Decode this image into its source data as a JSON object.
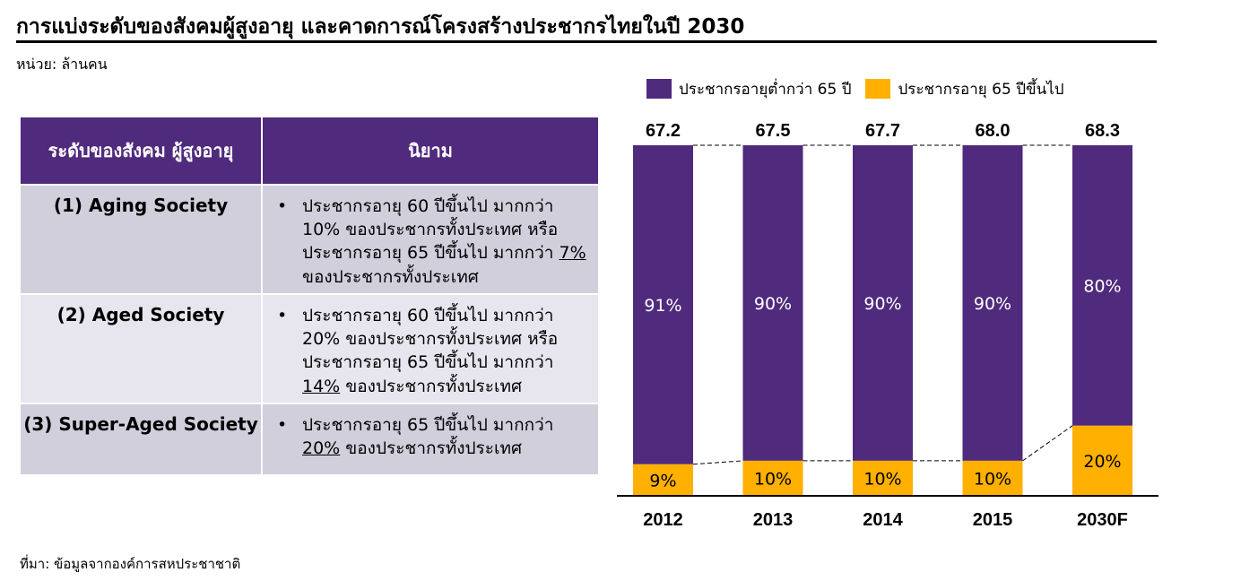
{
  "title": "การแบ่งระดับของสังคมผู้สูงอายุ และคาดการณ์โครงสร้างประชากรไทยในปี 2030",
  "unit_label": "หน่วย: ล้านคน",
  "source_label": "ที่มา:  ข้อมูลจากองค์การสหประชาชาติ",
  "colors": {
    "purple": "#4f2a7d",
    "gold": "#ffb000",
    "row_odd": "#d1cfdc",
    "row_even": "#e7e6ee"
  },
  "table": {
    "headers": [
      "ระดับของสังคม ผู้สูงอายุ",
      "นิยาม"
    ],
    "rows": [
      {
        "level": "(1) Aging Society",
        "def_a": "ประชากรอายุ 60 ปีขึ้นไป มากกว่า 10% ของประชากรทั้งประเทศ หรือ ประชากรอายุ 65 ปีขึ้นไป มากกว่า ",
        "def_u": "7%",
        "def_b": " ของประชากรทั้งประเทศ"
      },
      {
        "level": "(2) Aged Society",
        "def_a": "ประชากรอายุ 60 ปีขึ้นไป มากกว่า 20% ของประชากรทั้งประเทศ หรือ ประชากรอายุ 65 ปีขึ้นไป มากกว่า ",
        "def_u": "14%",
        "def_b": " ของประชากรทั้งประเทศ"
      },
      {
        "level": "(3) Super-Aged Society",
        "def_a": "ประชากรอายุ 65 ปีขึ้นไป มากกว่า ",
        "def_u": "20%",
        "def_b": " ของประชากรทั้งประเทศ"
      }
    ]
  },
  "chart_data": {
    "type": "bar",
    "stacked": true,
    "normalized": true,
    "categories": [
      "2012",
      "2013",
      "2014",
      "2015",
      "2030F"
    ],
    "totals": [
      "67.2",
      "67.5",
      "67.7",
      "68.0",
      "68.3"
    ],
    "series": [
      {
        "name": "ประชากรอายุต่ำกว่า 65 ปี",
        "color": "#4f2a7d",
        "values": [
          91,
          90,
          90,
          90,
          80
        ],
        "labels": [
          "91%",
          "90%",
          "90%",
          "90%",
          "80%"
        ]
      },
      {
        "name": "ประชากรอายุ 65 ปีขึ้นไป",
        "color": "#ffb000",
        "values": [
          9,
          10,
          10,
          10,
          20
        ],
        "labels": [
          "9%",
          "10%",
          "10%",
          "10%",
          "20%"
        ]
      }
    ],
    "legend": "top",
    "connector_lines": "dashed",
    "grid": false
  }
}
